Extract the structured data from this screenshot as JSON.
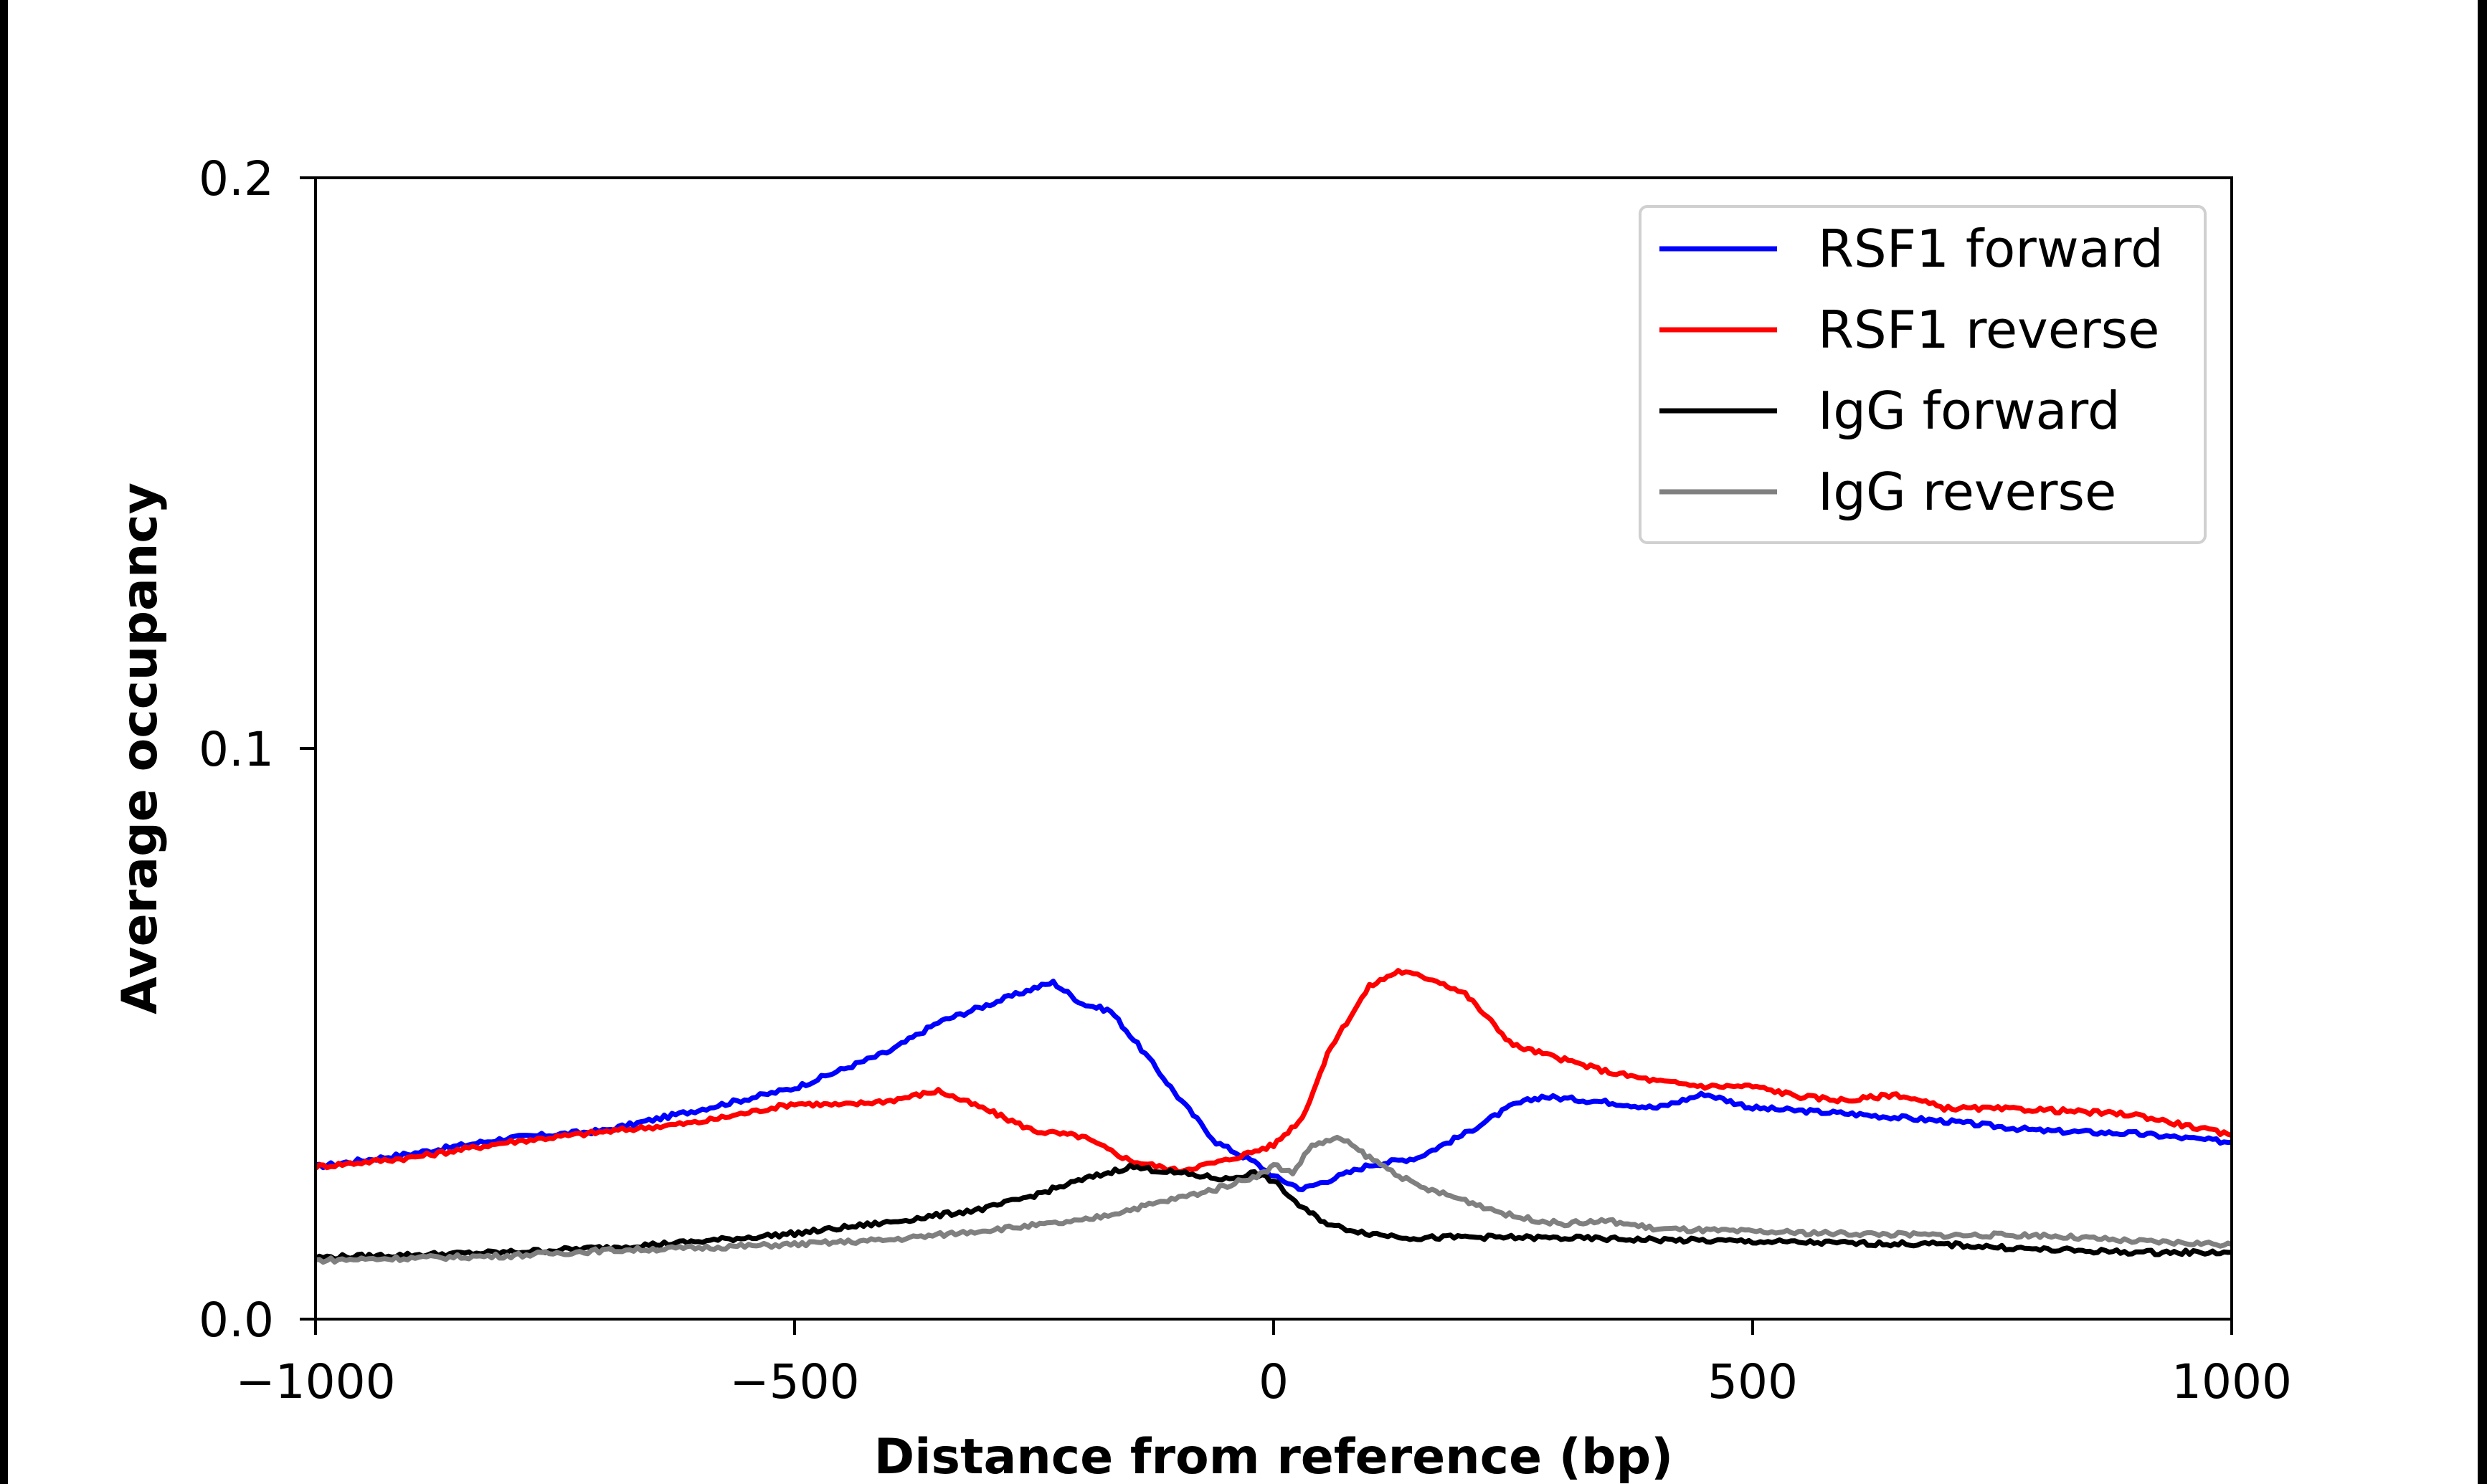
{
  "chart_data": {
    "type": "line",
    "title": "",
    "xlabel": "Distance from reference (bp)",
    "ylabel": "Average occupancy",
    "xlim": [
      -1000,
      1000
    ],
    "ylim": [
      0.0,
      0.2
    ],
    "xticks": [
      -1000,
      -500,
      0,
      500,
      1000
    ],
    "xtick_labels": [
      "−1000",
      "−500",
      "0",
      "500",
      "1000"
    ],
    "yticks": [
      0.0,
      0.1,
      0.2
    ],
    "ytick_labels": [
      "0.0",
      "0.1",
      "0.2"
    ],
    "grid": false,
    "legend_position": "top-right",
    "series": [
      {
        "name": "RSF1 forward",
        "color": "#0000ff",
        "x": [
          -1000,
          -900,
          -800,
          -700,
          -600,
          -500,
          -400,
          -350,
          -300,
          -250,
          -230,
          -200,
          -170,
          -130,
          -100,
          -60,
          -20,
          0,
          30,
          60,
          100,
          150,
          200,
          250,
          280,
          350,
          400,
          450,
          500,
          600,
          700,
          800,
          900,
          1000
        ],
        "y": [
          0.0267,
          0.029,
          0.0317,
          0.033,
          0.0367,
          0.0405,
          0.047,
          0.052,
          0.055,
          0.058,
          0.059,
          0.0553,
          0.054,
          0.0456,
          0.039,
          0.031,
          0.0275,
          0.025,
          0.0228,
          0.0245,
          0.027,
          0.0283,
          0.0325,
          0.0375,
          0.039,
          0.038,
          0.037,
          0.0395,
          0.037,
          0.036,
          0.0347,
          0.033,
          0.0325,
          0.031
        ]
      },
      {
        "name": "RSF1 reverse",
        "color": "#ff0000",
        "x": [
          -1000,
          -900,
          -800,
          -700,
          -600,
          -500,
          -450,
          -400,
          -350,
          -300,
          -250,
          -200,
          -150,
          -100,
          -50,
          0,
          30,
          60,
          100,
          130,
          170,
          200,
          250,
          300,
          350,
          400,
          450,
          500,
          550,
          600,
          650,
          700,
          800,
          900,
          1000
        ],
        "y": [
          0.0267,
          0.0283,
          0.031,
          0.0328,
          0.0345,
          0.0378,
          0.0375,
          0.0383,
          0.04,
          0.0367,
          0.033,
          0.032,
          0.0278,
          0.026,
          0.0278,
          0.0305,
          0.0353,
          0.0478,
          0.0583,
          0.061,
          0.0594,
          0.057,
          0.048,
          0.0456,
          0.0433,
          0.0417,
          0.0408,
          0.0408,
          0.039,
          0.0383,
          0.0394,
          0.037,
          0.0367,
          0.0358,
          0.0322
        ]
      },
      {
        "name": "IgG forward",
        "color": "#000000",
        "x": [
          -1000,
          -800,
          -700,
          -600,
          -500,
          -400,
          -300,
          -250,
          -200,
          -150,
          -100,
          -50,
          -20,
          0,
          30,
          60,
          100,
          150,
          200,
          300,
          400,
          500,
          600,
          700,
          800,
          900,
          1000
        ],
        "y": [
          0.0108,
          0.0117,
          0.0125,
          0.0136,
          0.015,
          0.017,
          0.0194,
          0.0217,
          0.0244,
          0.0267,
          0.0256,
          0.0245,
          0.0256,
          0.0242,
          0.0194,
          0.0164,
          0.015,
          0.0142,
          0.0144,
          0.0142,
          0.0139,
          0.0136,
          0.0133,
          0.0131,
          0.0122,
          0.0117,
          0.0117
        ]
      },
      {
        "name": "IgG reverse",
        "color": "#808080",
        "x": [
          -1000,
          -800,
          -700,
          -600,
          -500,
          -400,
          -300,
          -200,
          -130,
          -60,
          -10,
          0,
          20,
          40,
          70,
          100,
          150,
          200,
          250,
          300,
          350,
          400,
          500,
          600,
          700,
          800,
          900,
          1000
        ],
        "y": [
          0.0103,
          0.0111,
          0.012,
          0.0125,
          0.0131,
          0.0139,
          0.0156,
          0.0172,
          0.02,
          0.0228,
          0.0256,
          0.027,
          0.0256,
          0.0305,
          0.0317,
          0.0283,
          0.0233,
          0.0208,
          0.018,
          0.0167,
          0.0172,
          0.0158,
          0.0153,
          0.015,
          0.0147,
          0.0147,
          0.0136,
          0.0131
        ]
      }
    ]
  }
}
